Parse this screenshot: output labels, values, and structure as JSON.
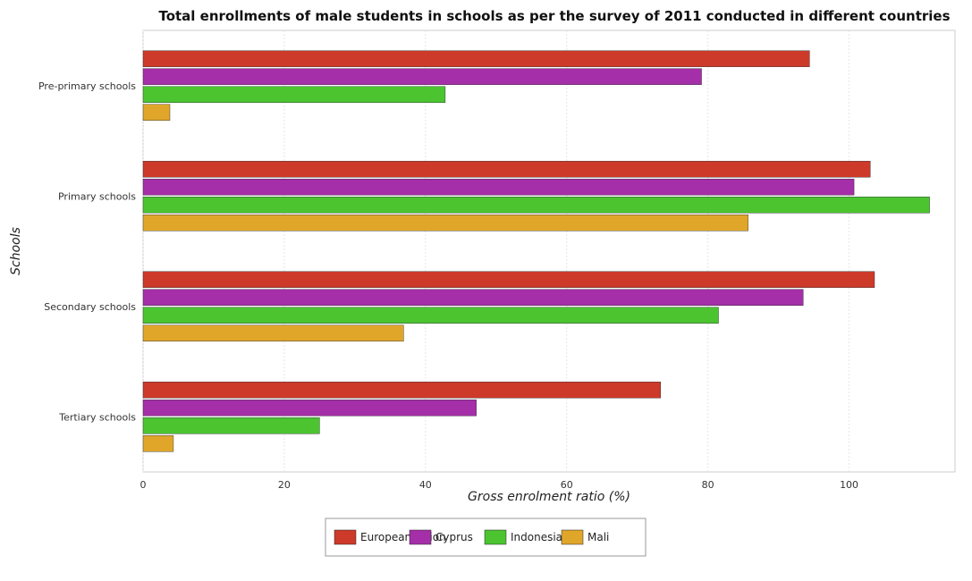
{
  "chart_data": {
    "type": "bar",
    "orientation": "horizontal",
    "title": "Total enrollments of male students in schools as per the survey of 2011 conducted in different countries",
    "xlabel": "Gross enrolment ratio (%)",
    "ylabel": "Schools",
    "xlim": [
      0,
      115
    ],
    "xticks": [
      0,
      20,
      40,
      60,
      80,
      100
    ],
    "grid": true,
    "legend_position": "bottom-center",
    "categories": [
      "Pre-primary schools",
      "Primary schools",
      "Secondary schools",
      "Tertiary schools"
    ],
    "series": [
      {
        "name": "European Union",
        "color": "#cd3a2a",
        "values": [
          94.4,
          103.0,
          103.6,
          73.3
        ]
      },
      {
        "name": "Cyprus",
        "color": "#a42fa8",
        "values": [
          79.1,
          100.7,
          93.5,
          47.2
        ]
      },
      {
        "name": "Indonesia",
        "color": "#4bc430",
        "values": [
          42.8,
          111.4,
          81.5,
          25.0
        ]
      },
      {
        "name": "Mali",
        "color": "#e0a62a",
        "values": [
          3.8,
          85.7,
          36.9,
          4.3
        ]
      }
    ]
  }
}
